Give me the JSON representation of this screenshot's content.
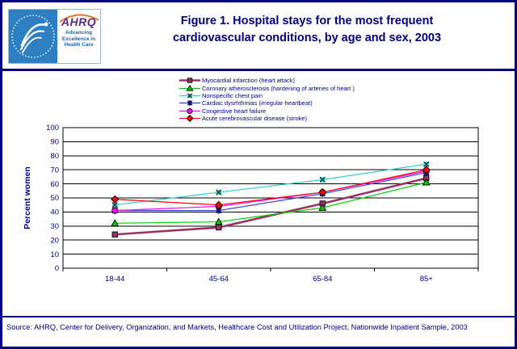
{
  "header": {
    "logo": {
      "org_abbr": "AHRQ",
      "tagline": "Advancing Excellence in Health Care"
    },
    "title_line1": "Figure 1. Hospital stays for the most frequent",
    "title_line2": "cardiovascular conditions, by age and sex, 2003"
  },
  "chart_data": {
    "type": "line",
    "categories": [
      "18-44",
      "45-64",
      "65-84",
      "85+"
    ],
    "series": [
      {
        "name": "Myocardial infarction (heart attack)",
        "values": [
          24,
          29,
          46,
          64
        ],
        "color": "#993366",
        "marker": "square",
        "line_width": 2.6
      },
      {
        "name": "Coronary atherosclerosis (hardening of arteries of heart )",
        "values": [
          32,
          33,
          43,
          61
        ],
        "color": "#00cc00",
        "marker": "triangle",
        "line_width": 1.2
      },
      {
        "name": "Nonspecific chest pain",
        "values": [
          45,
          54,
          63,
          74
        ],
        "color": "#33cccc",
        "marker": "x-square",
        "line_width": 1.2
      },
      {
        "name": "Cardiac dysrhthmias (irregular heartbeat)",
        "values": [
          41,
          41,
          53,
          68
        ],
        "color": "#3344cc",
        "marker": "star-square",
        "line_width": 1.2
      },
      {
        "name": "Congestive heart failure",
        "values": [
          41,
          44,
          54,
          69
        ],
        "color": "#ff00ff",
        "marker": "circle",
        "line_width": 1.2
      },
      {
        "name": "Acute cerebrovascular disease (stroke)",
        "values": [
          49,
          45,
          54,
          70
        ],
        "color": "#ff0000",
        "marker": "diamond",
        "line_width": 1.2
      }
    ],
    "title": "",
    "xlabel": "",
    "ylabel": "Percent women",
    "ylim": [
      0,
      100
    ],
    "ytick_step": 10,
    "grid": true,
    "legend_position": "top"
  },
  "footer": {
    "source": "Source: AHRQ, Center for Delivery, Organization, and Markets, Healthcare Cost and Utilization Project, Nationwide Inpatient Sample, 2003"
  },
  "colors": {
    "frame": "#000080",
    "text": "#000080",
    "axis": "#000000",
    "seal_blue": "#2e7fc1",
    "ahrq_purple": "#5b2b8a",
    "ahrq_arc_orange": "#e87722"
  }
}
